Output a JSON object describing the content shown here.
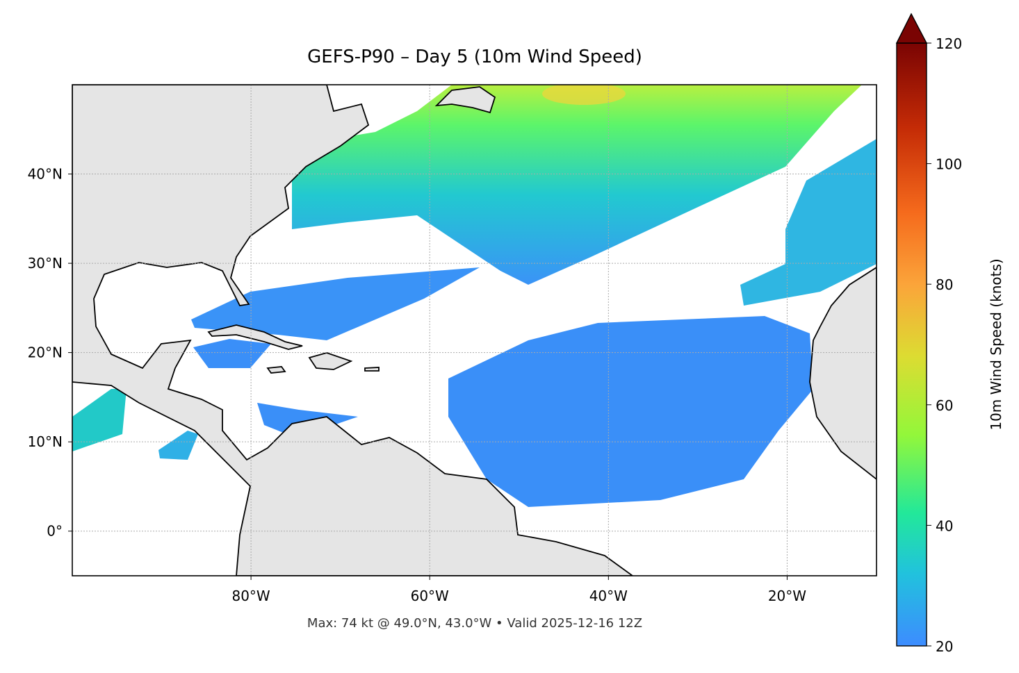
{
  "title": "GEFS-P90 – Day 5 (10m Wind Speed)",
  "footnote": "Max: 74 kt @ 49.0°N, 43.0°W • Valid 2025-12-16 12Z",
  "map": {
    "xlim": [
      -100,
      -10
    ],
    "ylim": [
      -5,
      50
    ],
    "xticks": [
      {
        "value": -80,
        "label": "80°W"
      },
      {
        "value": -60,
        "label": "60°W"
      },
      {
        "value": -40,
        "label": "40°W"
      },
      {
        "value": -20,
        "label": "20°W"
      }
    ],
    "yticks": [
      {
        "value": 0,
        "label": "0°"
      },
      {
        "value": 10,
        "label": "10°N"
      },
      {
        "value": 20,
        "label": "20°N"
      },
      {
        "value": 30,
        "label": "30°N"
      },
      {
        "value": 40,
        "label": "40°N"
      }
    ],
    "grid": true
  },
  "colorbar": {
    "label": "10m Wind Speed (knots)",
    "lim": [
      20,
      120
    ],
    "ticks": [
      20,
      40,
      60,
      80,
      100,
      120
    ],
    "extend": "max"
  }
}
